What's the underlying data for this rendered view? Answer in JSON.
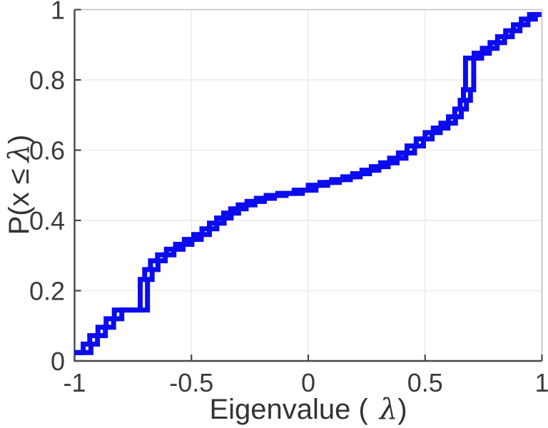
{
  "figure": {
    "xlabel": {
      "prefix": "Eigenvalue (",
      "lambda": "λ",
      "suffix": ")"
    },
    "ylabel": {
      "prefix": "P(x ",
      "leq": "≤",
      "lambda": "λ",
      "suffix": ")"
    }
  },
  "chart_data": {
    "type": "step",
    "description": "Empirical CDF of eigenvalues; two overlapping staircase curves",
    "title": "",
    "xlabel": "Eigenvalue (λ)",
    "ylabel": "P(x ≤ λ)",
    "xlim": [
      -1,
      1
    ],
    "ylim": [
      0,
      1
    ],
    "xticks": [
      -1,
      -0.5,
      0,
      0.5,
      1
    ],
    "xtick_labels": [
      "-1",
      "-0.5",
      "0",
      "0.5",
      "1"
    ],
    "yticks": [
      0,
      0.2,
      0.4,
      0.6,
      0.8,
      1
    ],
    "ytick_labels": [
      "0",
      "0.2",
      "0.4",
      "0.6",
      "0.8",
      "1"
    ],
    "grid": true,
    "legend": "none",
    "line_color": "#0b0bee",
    "line_width": 7,
    "grid_color": "#ebebeb",
    "axis_color": "#474747",
    "box_color": "#c4c4c4",
    "text_color": "#3b3b3b",
    "series": [
      {
        "name": "ecdf-1",
        "end_x": 0.988,
        "x": [
          -1.0,
          -0.963,
          -0.935,
          -0.9,
          -0.865,
          -0.83,
          -0.719,
          -0.7,
          -0.675,
          -0.645,
          -0.607,
          -0.568,
          -0.53,
          -0.49,
          -0.455,
          -0.423,
          -0.392,
          -0.362,
          -0.332,
          -0.3,
          -0.262,
          -0.222,
          -0.18,
          -0.13,
          -0.06,
          0.0,
          0.05,
          0.1,
          0.148,
          0.19,
          0.23,
          0.27,
          0.31,
          0.348,
          0.386,
          0.423,
          0.462,
          0.5,
          0.535,
          0.568,
          0.6,
          0.627,
          0.65,
          0.664,
          0.673,
          0.71,
          0.745,
          0.778,
          0.81,
          0.845,
          0.878,
          0.912,
          0.947
        ],
        "p": [
          0.024,
          0.048,
          0.072,
          0.096,
          0.12,
          0.145,
          0.232,
          0.26,
          0.285,
          0.302,
          0.318,
          0.332,
          0.346,
          0.36,
          0.376,
          0.392,
          0.407,
          0.421,
          0.433,
          0.444,
          0.454,
          0.463,
          0.471,
          0.477,
          0.486,
          0.5,
          0.508,
          0.516,
          0.524,
          0.533,
          0.543,
          0.553,
          0.564,
          0.577,
          0.592,
          0.612,
          0.632,
          0.65,
          0.663,
          0.677,
          0.695,
          0.717,
          0.742,
          0.772,
          0.862,
          0.876,
          0.89,
          0.906,
          0.923,
          0.94,
          0.957,
          0.973,
          0.986
        ]
      },
      {
        "name": "ecdf-2",
        "end_x": 0.998,
        "x": [
          -1.0,
          -0.93,
          -0.902,
          -0.868,
          -0.833,
          -0.798,
          -0.688,
          -0.668,
          -0.643,
          -0.612,
          -0.575,
          -0.536,
          -0.498,
          -0.458,
          -0.423,
          -0.391,
          -0.36,
          -0.33,
          -0.298,
          -0.266,
          -0.228,
          -0.188,
          -0.145,
          -0.095,
          -0.025,
          0.033,
          0.083,
          0.133,
          0.18,
          0.222,
          0.262,
          0.302,
          0.342,
          0.38,
          0.418,
          0.455,
          0.493,
          0.53,
          0.565,
          0.598,
          0.63,
          0.655,
          0.677,
          0.694,
          0.708,
          0.742,
          0.775,
          0.808,
          0.84,
          0.873,
          0.906,
          0.94,
          0.972
        ],
        "p": [
          0.024,
          0.048,
          0.072,
          0.096,
          0.12,
          0.145,
          0.232,
          0.26,
          0.285,
          0.302,
          0.318,
          0.332,
          0.346,
          0.36,
          0.376,
          0.392,
          0.407,
          0.421,
          0.433,
          0.444,
          0.454,
          0.463,
          0.471,
          0.477,
          0.486,
          0.5,
          0.508,
          0.516,
          0.524,
          0.533,
          0.543,
          0.553,
          0.564,
          0.577,
          0.592,
          0.612,
          0.632,
          0.65,
          0.663,
          0.677,
          0.695,
          0.717,
          0.742,
          0.772,
          0.862,
          0.876,
          0.89,
          0.906,
          0.923,
          0.94,
          0.957,
          0.973,
          0.986
        ]
      }
    ]
  }
}
